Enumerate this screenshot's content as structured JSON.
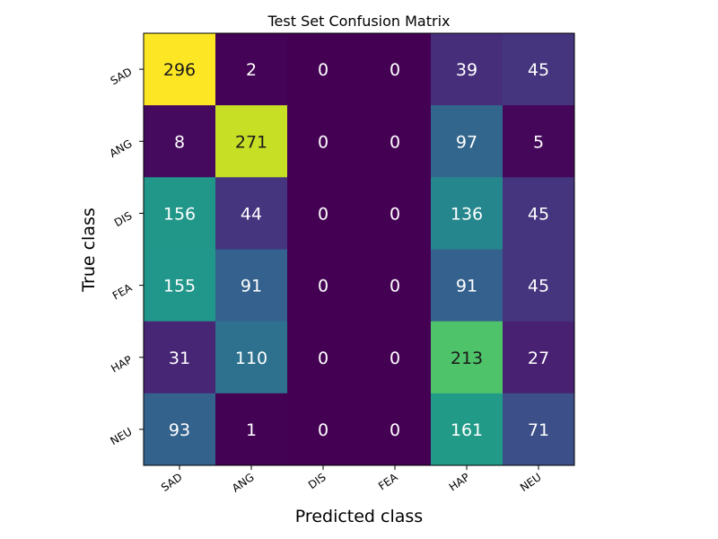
{
  "chart_data": {
    "type": "heatmap",
    "title": "Test Set Confusion Matrix",
    "xlabel": "Predicted class",
    "ylabel": "True class",
    "x_categories": [
      "SAD",
      "ANG",
      "DIS",
      "FEA",
      "HAP",
      "NEU"
    ],
    "y_categories": [
      "SAD",
      "ANG",
      "DIS",
      "FEA",
      "HAP",
      "NEU"
    ],
    "values": [
      [
        296,
        2,
        0,
        0,
        39,
        45
      ],
      [
        8,
        271,
        0,
        0,
        97,
        5
      ],
      [
        156,
        44,
        0,
        0,
        136,
        45
      ],
      [
        155,
        91,
        0,
        0,
        91,
        45
      ],
      [
        31,
        110,
        0,
        0,
        213,
        27
      ],
      [
        93,
        1,
        0,
        0,
        161,
        71
      ]
    ],
    "colormap": "viridis",
    "value_range": [
      0,
      296
    ],
    "grid": false,
    "legend": "none"
  }
}
